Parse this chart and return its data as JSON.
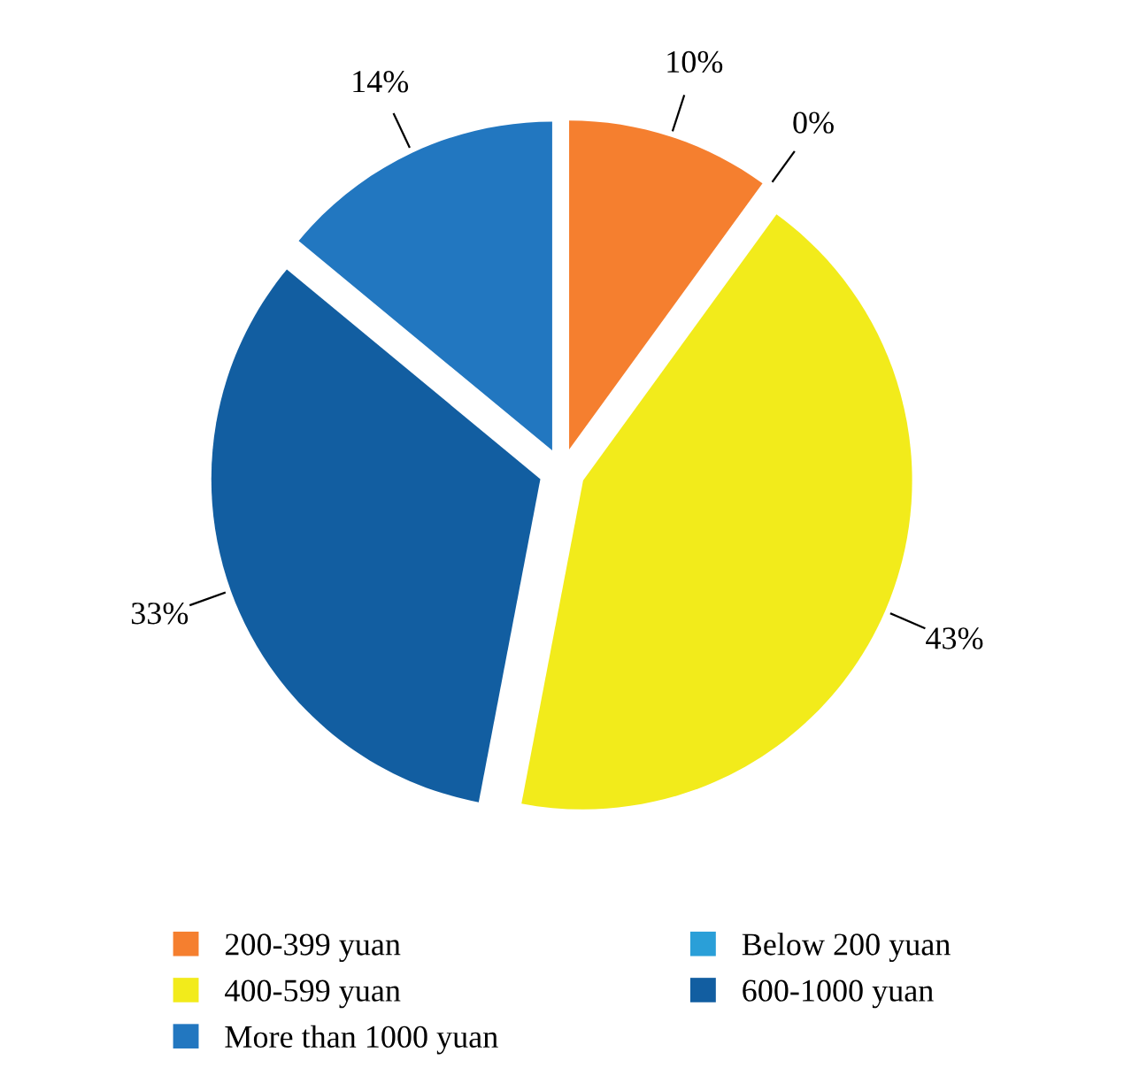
{
  "chart_data": {
    "type": "pie",
    "categories": [
      "200-399 yuan",
      "Below 200 yuan",
      "400-599 yuan",
      "600-1000 yuan",
      "More than 1000 yuan"
    ],
    "values": [
      10,
      0,
      43,
      33,
      14
    ],
    "value_labels": [
      "10%",
      "0%",
      "43%",
      "33%",
      "14%"
    ],
    "colors": [
      "#f57f2f",
      "#2a9fd8",
      "#f2eb1b",
      "#125ea1",
      "#2277c0"
    ],
    "legend": "bottom"
  }
}
